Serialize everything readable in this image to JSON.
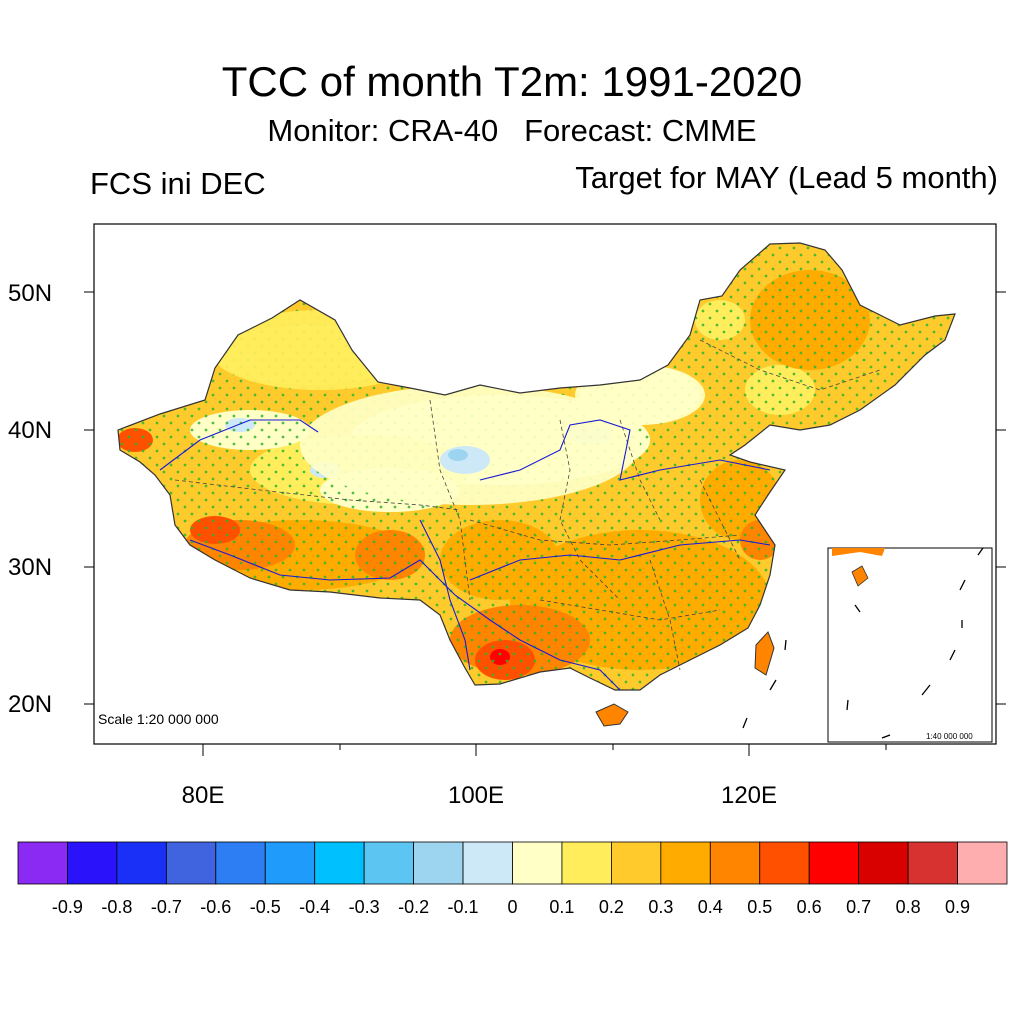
{
  "title": "TCC of month T2m: 1991-2020",
  "subtitle": "Monitor: CRA-40   Forecast: CMME",
  "left_label": "FCS ini DEC",
  "right_label": "Target for MAY (Lead 5 month)",
  "scale_main": "Scale 1:20 000 000",
  "scale_inset": "1:40 000 000",
  "lat_labels": [
    "50N",
    "40N",
    "30N",
    "20N"
  ],
  "lon_labels": [
    "80E",
    "100E",
    "120E"
  ],
  "colorbar": {
    "colors": [
      "#8b2af2",
      "#2a12fb",
      "#1b30f7",
      "#4064e0",
      "#2d7df3",
      "#1f9bfb",
      "#00c0fd",
      "#5cc5f2",
      "#9dd5f0",
      "#cde9f7",
      "#ffffc6",
      "#ffed5c",
      "#ffcb2c",
      "#ffab00",
      "#ff8400",
      "#ff5000",
      "#ff0000",
      "#d90000",
      "#d7322f",
      "#ffaeb0"
    ],
    "labels": [
      "-0.9",
      "-0.8",
      "-0.7",
      "-0.6",
      "-0.5",
      "-0.4",
      "-0.3",
      "-0.2",
      "-0.1",
      "0",
      "0.1",
      "0.2",
      "0.3",
      "0.4",
      "0.5",
      "0.6",
      "0.7",
      "0.8",
      "0.9"
    ]
  }
}
